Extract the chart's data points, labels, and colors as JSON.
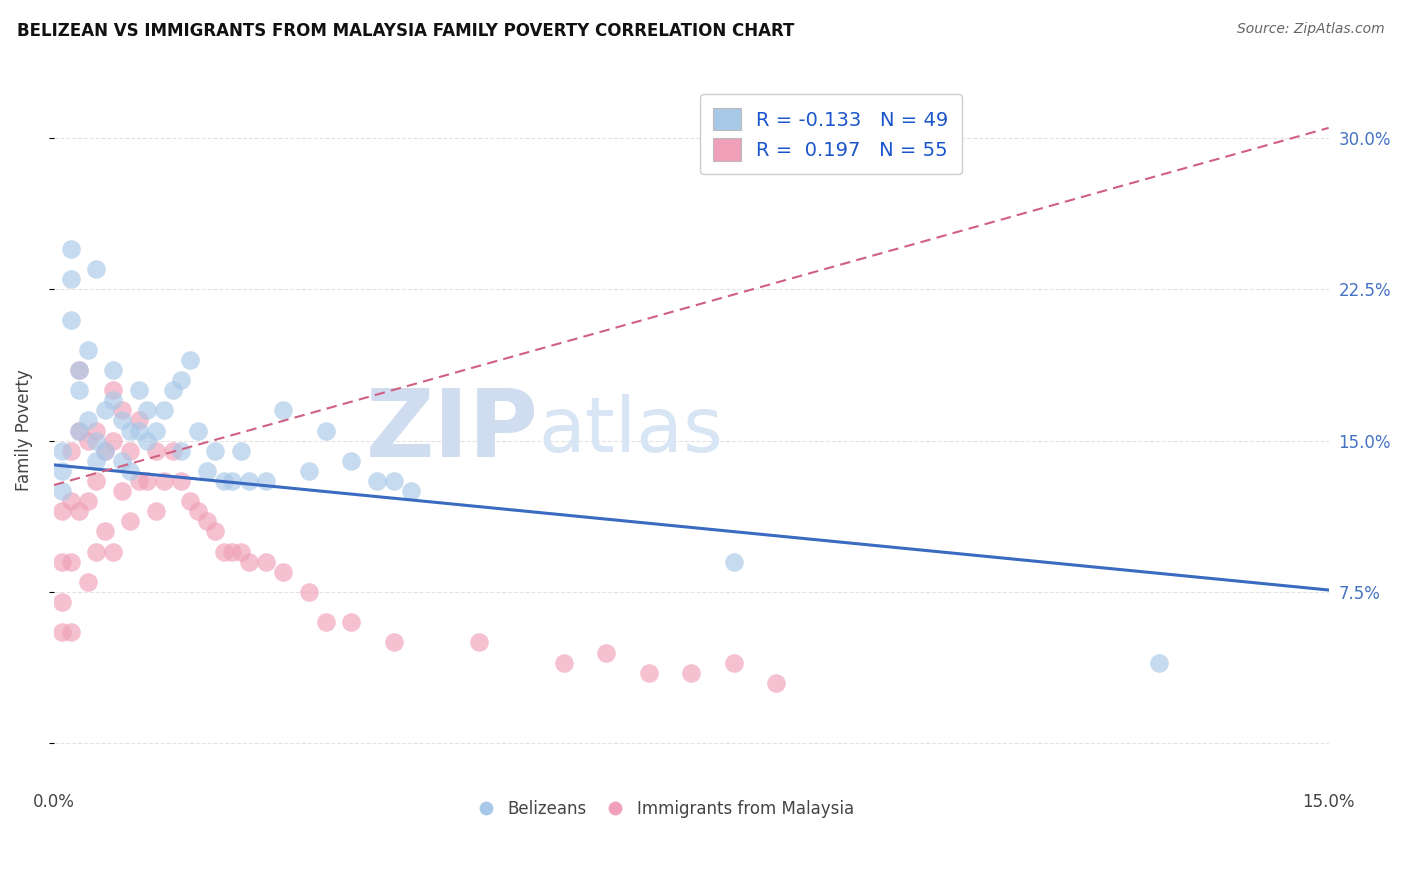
{
  "title": "BELIZEAN VS IMMIGRANTS FROM MALAYSIA FAMILY POVERTY CORRELATION CHART",
  "source_text": "Source: ZipAtlas.com",
  "ylabel": "Family Poverty",
  "yticks": [
    0.0,
    0.075,
    0.15,
    0.225,
    0.3
  ],
  "ytick_labels": [
    "",
    "7.5%",
    "15.0%",
    "22.5%",
    "30.0%"
  ],
  "xlim": [
    0.0,
    0.15
  ],
  "ylim": [
    -0.02,
    0.33
  ],
  "blue_color": "#A8C8E8",
  "pink_color": "#F0A0B8",
  "blue_line_color": "#3A6BC0",
  "pink_line_color": "#D06080",
  "grid_color": "#DDDDDD",
  "background_color": "#FFFFFF",
  "watermark_zip": "ZIP",
  "watermark_atlas": "atlas",
  "watermark_color_zip": "#C8D8EE",
  "watermark_color_atlas": "#C8D8EE",
  "legend_R1": "R = -0.133",
  "legend_N1": "N = 49",
  "legend_R2": "R =  0.197",
  "legend_N2": "N = 55",
  "label1": "Belizeans",
  "label2": "Immigrants from Malaysia",
  "blue_line_x0": 0.0,
  "blue_line_y0": 0.138,
  "blue_line_x1": 0.15,
  "blue_line_y1": 0.076,
  "pink_line_x0": 0.0,
  "pink_line_y0": 0.128,
  "pink_line_x1": 0.15,
  "pink_line_y1": 0.305,
  "blue_scatter_x": [
    0.001,
    0.001,
    0.001,
    0.002,
    0.002,
    0.002,
    0.003,
    0.003,
    0.003,
    0.004,
    0.004,
    0.005,
    0.005,
    0.005,
    0.006,
    0.006,
    0.007,
    0.007,
    0.008,
    0.008,
    0.009,
    0.009,
    0.01,
    0.01,
    0.011,
    0.011,
    0.012,
    0.013,
    0.014,
    0.015,
    0.015,
    0.016,
    0.017,
    0.018,
    0.019,
    0.02,
    0.021,
    0.022,
    0.023,
    0.025,
    0.027,
    0.03,
    0.032,
    0.035,
    0.038,
    0.04,
    0.042,
    0.08,
    0.13
  ],
  "blue_scatter_y": [
    0.145,
    0.135,
    0.125,
    0.23,
    0.245,
    0.21,
    0.175,
    0.155,
    0.185,
    0.16,
    0.195,
    0.235,
    0.15,
    0.14,
    0.165,
    0.145,
    0.17,
    0.185,
    0.16,
    0.14,
    0.155,
    0.135,
    0.175,
    0.155,
    0.165,
    0.15,
    0.155,
    0.165,
    0.175,
    0.18,
    0.145,
    0.19,
    0.155,
    0.135,
    0.145,
    0.13,
    0.13,
    0.145,
    0.13,
    0.13,
    0.165,
    0.135,
    0.155,
    0.14,
    0.13,
    0.13,
    0.125,
    0.09,
    0.04
  ],
  "pink_scatter_x": [
    0.001,
    0.001,
    0.001,
    0.001,
    0.002,
    0.002,
    0.002,
    0.002,
    0.003,
    0.003,
    0.003,
    0.004,
    0.004,
    0.004,
    0.005,
    0.005,
    0.005,
    0.006,
    0.006,
    0.007,
    0.007,
    0.007,
    0.008,
    0.008,
    0.009,
    0.009,
    0.01,
    0.01,
    0.011,
    0.012,
    0.012,
    0.013,
    0.014,
    0.015,
    0.016,
    0.017,
    0.018,
    0.019,
    0.02,
    0.021,
    0.022,
    0.023,
    0.025,
    0.027,
    0.03,
    0.032,
    0.035,
    0.04,
    0.05,
    0.06,
    0.065,
    0.07,
    0.075,
    0.08,
    0.085
  ],
  "pink_scatter_y": [
    0.115,
    0.09,
    0.07,
    0.055,
    0.145,
    0.12,
    0.09,
    0.055,
    0.185,
    0.155,
    0.115,
    0.15,
    0.12,
    0.08,
    0.155,
    0.13,
    0.095,
    0.145,
    0.105,
    0.175,
    0.15,
    0.095,
    0.165,
    0.125,
    0.145,
    0.11,
    0.16,
    0.13,
    0.13,
    0.145,
    0.115,
    0.13,
    0.145,
    0.13,
    0.12,
    0.115,
    0.11,
    0.105,
    0.095,
    0.095,
    0.095,
    0.09,
    0.09,
    0.085,
    0.075,
    0.06,
    0.06,
    0.05,
    0.05,
    0.04,
    0.045,
    0.035,
    0.035,
    0.04,
    0.03
  ]
}
